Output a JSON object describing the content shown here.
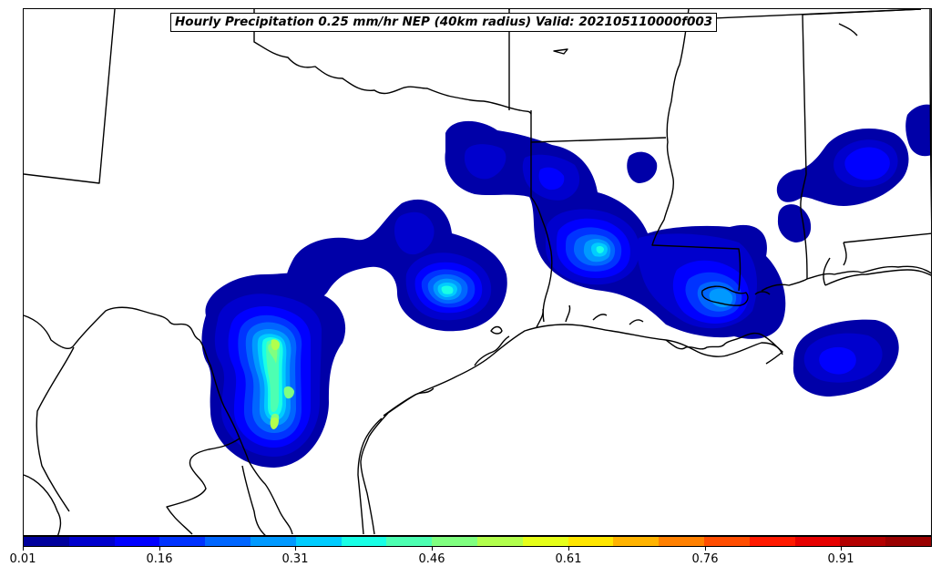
{
  "title": "Hourly Precipitation 0.25 mm/hr NEP (40km radius) Valid: 202105110000f003",
  "colorbar": {
    "ticks": [
      "0.01",
      "0.16",
      "0.31",
      "0.46",
      "0.61",
      "0.76",
      "0.91"
    ],
    "tick_values": [
      0.01,
      0.16,
      0.31,
      0.46,
      0.61,
      0.76,
      0.91
    ],
    "range": [
      0.01,
      1.01
    ],
    "colors": [
      "#00009c",
      "#0000cd",
      "#0000ff",
      "#0033ff",
      "#0066ff",
      "#0099ff",
      "#00ccff",
      "#19ffe6",
      "#4dffb2",
      "#80ff80",
      "#b2ff4d",
      "#e6ff19",
      "#ffe600",
      "#ffb300",
      "#ff8000",
      "#ff4d00",
      "#ff1a00",
      "#e60000",
      "#b30000",
      "#990000"
    ]
  },
  "map": {
    "region": "Texas / Louisiana Gulf Coast",
    "line_color": "#000000",
    "fill_colors": [
      "#0000a8",
      "#0000cd",
      "#0000ff",
      "#0033ff",
      "#0066ff",
      "#0099ff",
      "#00ccff",
      "#19ffe6",
      "#4dffb2",
      "#80ff80",
      "#b2ff4d",
      "#e6ff19"
    ]
  }
}
